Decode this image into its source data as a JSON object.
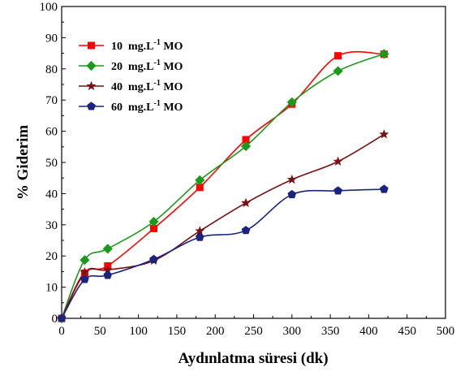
{
  "chart_data": {
    "type": "line",
    "xlabel": "Aydınlatma süresi (dk)",
    "ylabel": "% Giderim",
    "xlim": [
      0,
      500
    ],
    "ylim": [
      0,
      100
    ],
    "xticks": [
      0,
      50,
      100,
      150,
      200,
      250,
      300,
      350,
      400,
      450,
      500
    ],
    "yticks": [
      0,
      10,
      20,
      30,
      40,
      50,
      60,
      70,
      80,
      90,
      100
    ],
    "grid": false,
    "legend_position": "top-left",
    "x": [
      0,
      30,
      60,
      120,
      180,
      240,
      300,
      360,
      420
    ],
    "series": [
      {
        "name_prefix": "10",
        "name_unit": "mg.L",
        "name_sup": "-1",
        "name_suffix": "MO",
        "color": "#ff0000",
        "marker": "square",
        "values": [
          0,
          14.5,
          16.8,
          28.8,
          42,
          57.3,
          68.7,
          84.2,
          84.7
        ]
      },
      {
        "name_prefix": "20",
        "name_unit": "mg.L",
        "name_sup": "-1",
        "name_suffix": "MO",
        "color": "#1a9a1a",
        "marker": "diamond",
        "values": [
          0,
          18.7,
          22.3,
          31,
          44.3,
          55.2,
          69.3,
          79.3,
          84.8
        ]
      },
      {
        "name_prefix": "40",
        "name_unit": "mg.L",
        "name_sup": "-1",
        "name_suffix": "MO",
        "color": "#7a1010",
        "marker": "star",
        "values": [
          0,
          14.8,
          15.5,
          18.5,
          28,
          37,
          44.5,
          50.3,
          59
        ]
      },
      {
        "name_prefix": "60",
        "name_unit": "mg.L",
        "name_sup": "-1",
        "name_suffix": "MO",
        "color": "#1a237e",
        "marker": "pentagon",
        "values": [
          0,
          12.5,
          13.8,
          18.9,
          26,
          28.2,
          39.7,
          40.9,
          41.4
        ]
      }
    ]
  }
}
